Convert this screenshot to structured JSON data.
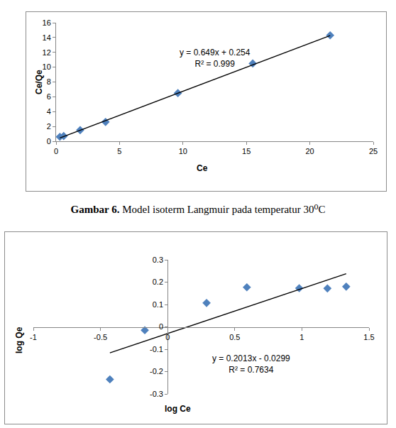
{
  "chart_data": [
    {
      "type": "scatter",
      "xlabel": "Ce",
      "ylabel": "Ce/Qe",
      "annotations": [
        "y = 0.649x + 0.254",
        "R² = 0.999"
      ],
      "xlim": [
        0,
        25
      ],
      "xticks": [
        0,
        5,
        10,
        15,
        20,
        25
      ],
      "ylim": [
        0,
        16
      ],
      "yticks": [
        0,
        2,
        4,
        6,
        8,
        10,
        12,
        14,
        16
      ],
      "grid": false,
      "series": [
        {
          "type": "scatter",
          "x": [
            0.3,
            0.6,
            1.9,
            3.9,
            9.6,
            15.5,
            21.6
          ],
          "values": [
            0.6,
            0.7,
            1.5,
            2.6,
            6.5,
            10.5,
            14.3
          ],
          "color": "#4f81bd",
          "marker": "diamond"
        },
        {
          "type": "line",
          "x": [
            0.3,
            21.6
          ],
          "values": [
            0.449,
            14.27
          ],
          "color": "#000000",
          "line_style": "solid"
        }
      ]
    },
    {
      "type": "scatter",
      "xlabel": "log Ce",
      "ylabel": "log Qe",
      "annotations": [
        "y = 0.2013x - 0.0299",
        "R² = 0.7634"
      ],
      "xlim": [
        -1,
        1.5
      ],
      "xticks": [
        -1,
        -0.5,
        0,
        0.5,
        1,
        1.5
      ],
      "ylim": [
        -0.3,
        0.3
      ],
      "yticks": [
        -0.3,
        -0.2,
        -0.1,
        0,
        0.1,
        0.2,
        0.3
      ],
      "grid": false,
      "series": [
        {
          "type": "scatter",
          "x": [
            -0.43,
            -0.17,
            0.29,
            0.59,
            0.98,
            1.19,
            1.33
          ],
          "values": [
            -0.235,
            -0.015,
            0.107,
            0.177,
            0.173,
            0.172,
            0.18
          ],
          "color": "#4f81bd",
          "marker": "diamond"
        },
        {
          "type": "line",
          "x": [
            -0.43,
            1.33
          ],
          "values": [
            -0.1165,
            0.2378
          ],
          "color": "#000000",
          "line_style": "solid"
        }
      ]
    }
  ],
  "caption": {
    "label": "Gambar 6.",
    "text": "Model isoterm Langmuir pada temperatur 30⁰C"
  }
}
